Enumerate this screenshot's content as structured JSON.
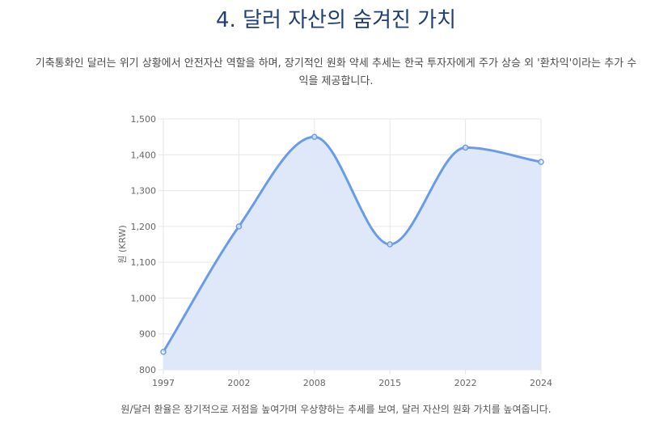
{
  "section": {
    "title": "4. 달러 자산의 숨겨진 가치",
    "intro_line1": "기축통화인 달러는 위기 상황에서 안전자산 역할을 하며, 장기적인 원화 약세 추세는 한국 투자자에게 주가 상승 외 '환차익'이라는 추가 수",
    "intro_line2": "익을 제공합니다.",
    "caption": "원/달러 환율은 장기적으로 저점을 높여가며 우상향하는 추세를 보여, 달러 자산의 원화 가치를 높여줍니다."
  },
  "colors": {
    "title": "#1f3f73",
    "line": "#6a9be8",
    "fill": "#dde7f8",
    "grid": "#e6e6e6"
  },
  "chart_data": {
    "type": "area",
    "categories": [
      "1997",
      "2002",
      "2008",
      "2015",
      "2022",
      "2024"
    ],
    "series": [
      {
        "values": [
          850,
          1200,
          1450,
          1150,
          1420,
          1380
        ]
      }
    ],
    "ylabel": "원 (KRW)",
    "xlabel": "",
    "ylim": [
      800,
      1500
    ],
    "yticks": [
      "800",
      "900",
      "1,000",
      "1,100",
      "1,200",
      "1,300",
      "1,400",
      "1,500"
    ],
    "grid": true,
    "legend": "none"
  }
}
